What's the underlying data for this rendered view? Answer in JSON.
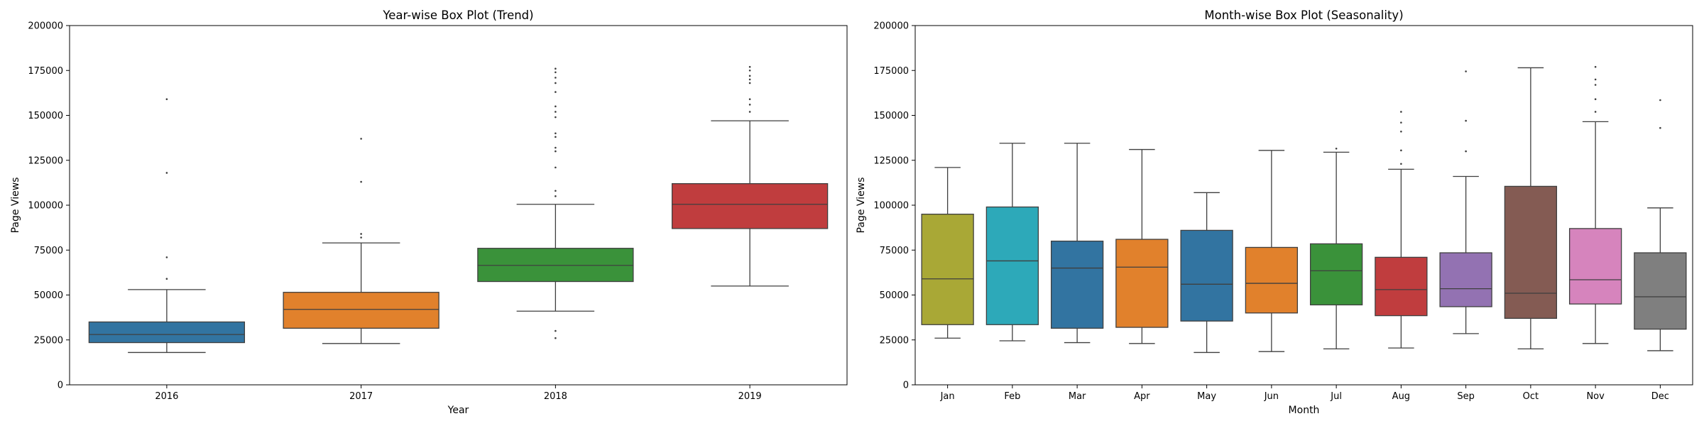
{
  "chart_data": [
    {
      "type": "box",
      "title": "Year-wise Box Plot (Trend)",
      "xlabel": "Year",
      "ylabel": "Page Views",
      "ylim": [
        0,
        200000
      ],
      "yticks": [
        0,
        25000,
        50000,
        75000,
        100000,
        125000,
        150000,
        175000,
        200000
      ],
      "yticklabels": [
        "0",
        "25000",
        "50000",
        "75000",
        "100000",
        "125000",
        "150000",
        "175000",
        "200000"
      ],
      "grid": false,
      "categories": [
        "2016",
        "2017",
        "2018",
        "2019"
      ],
      "boxes": [
        {
          "name": "2016",
          "whisker_low": 18000,
          "q1": 23500,
          "median": 28000,
          "q3": 35000,
          "whisker_high": 53000,
          "outliers": [
            59000,
            71000,
            118000,
            159000
          ],
          "color": "#3274a1"
        },
        {
          "name": "2017",
          "whisker_low": 23000,
          "q1": 31500,
          "median": 42000,
          "q3": 51500,
          "whisker_high": 79000,
          "outliers": [
            82000,
            84000,
            113000,
            137000
          ],
          "color": "#e1812c"
        },
        {
          "name": "2018",
          "whisker_low": 41000,
          "q1": 57500,
          "median": 66500,
          "q3": 76000,
          "whisker_high": 100500,
          "outliers": [
            26000,
            30000,
            105000,
            108000,
            121000,
            130000,
            132000,
            138000,
            140000,
            149000,
            152000,
            155000,
            163000,
            168000,
            171000,
            174000,
            176000
          ],
          "color": "#3a923a"
        },
        {
          "name": "2019",
          "whisker_low": 55000,
          "q1": 87000,
          "median": 100500,
          "q3": 112000,
          "whisker_high": 147000,
          "outliers": [
            152000,
            156000,
            159000,
            168000,
            170000,
            172000,
            175000,
            177000
          ],
          "color": "#c03d3e"
        }
      ]
    },
    {
      "type": "box",
      "title": "Month-wise Box Plot (Seasonality)",
      "xlabel": "Month",
      "ylabel": "Page Views",
      "ylim": [
        0,
        200000
      ],
      "yticks": [
        0,
        25000,
        50000,
        75000,
        100000,
        125000,
        150000,
        175000,
        200000
      ],
      "yticklabels": [
        "0",
        "25000",
        "50000",
        "75000",
        "100000",
        "125000",
        "150000",
        "175000",
        "200000"
      ],
      "grid": false,
      "categories": [
        "Jan",
        "Feb",
        "Mar",
        "Apr",
        "May",
        "Jun",
        "Jul",
        "Aug",
        "Sep",
        "Oct",
        "Nov",
        "Dec"
      ],
      "boxes": [
        {
          "name": "Jan",
          "whisker_low": 26000,
          "q1": 33500,
          "median": 59000,
          "q3": 95000,
          "whisker_high": 121000,
          "outliers": [],
          "color": "#a9a836"
        },
        {
          "name": "Feb",
          "whisker_low": 24500,
          "q1": 33500,
          "median": 69000,
          "q3": 99000,
          "whisker_high": 134500,
          "outliers": [],
          "color": "#2da9b9"
        },
        {
          "name": "Mar",
          "whisker_low": 23500,
          "q1": 31500,
          "median": 65000,
          "q3": 80000,
          "whisker_high": 134500,
          "outliers": [],
          "color": "#3274a1"
        },
        {
          "name": "Apr",
          "whisker_low": 23000,
          "q1": 32000,
          "median": 65500,
          "q3": 81000,
          "whisker_high": 131000,
          "outliers": [],
          "color": "#e1812c"
        },
        {
          "name": "May",
          "whisker_low": 18000,
          "q1": 35500,
          "median": 56000,
          "q3": 86000,
          "whisker_high": 107000,
          "outliers": [],
          "color": "#3274a1"
        },
        {
          "name": "Jun",
          "whisker_low": 18500,
          "q1": 40000,
          "median": 56500,
          "q3": 76500,
          "whisker_high": 130500,
          "outliers": [],
          "color": "#e1812c"
        },
        {
          "name": "Jul",
          "whisker_low": 20000,
          "q1": 44500,
          "median": 63500,
          "q3": 78500,
          "whisker_high": 129500,
          "outliers": [
            131500
          ],
          "color": "#3a923a"
        },
        {
          "name": "Aug",
          "whisker_low": 20500,
          "q1": 38500,
          "median": 53000,
          "q3": 71000,
          "whisker_high": 120000,
          "outliers": [
            123000,
            130500,
            141000,
            146000,
            152000
          ],
          "color": "#c03d3e"
        },
        {
          "name": "Sep",
          "whisker_low": 28500,
          "q1": 43500,
          "median": 53500,
          "q3": 73500,
          "whisker_high": 116000,
          "outliers": [
            130000,
            147000,
            174500
          ],
          "color": "#9372b2"
        },
        {
          "name": "Oct",
          "whisker_low": 20000,
          "q1": 37000,
          "median": 51000,
          "q3": 110500,
          "whisker_high": 176500,
          "outliers": [],
          "color": "#845b53"
        },
        {
          "name": "Nov",
          "whisker_low": 23000,
          "q1": 45000,
          "median": 58500,
          "q3": 87000,
          "whisker_high": 146500,
          "outliers": [
            152000,
            159000,
            167000,
            170000,
            177000
          ],
          "color": "#d684bd"
        },
        {
          "name": "Dec",
          "whisker_low": 19000,
          "q1": 31000,
          "median": 49000,
          "q3": 73500,
          "whisker_high": 98500,
          "outliers": [
            143000,
            158500
          ],
          "color": "#7f7f7f"
        }
      ]
    }
  ]
}
